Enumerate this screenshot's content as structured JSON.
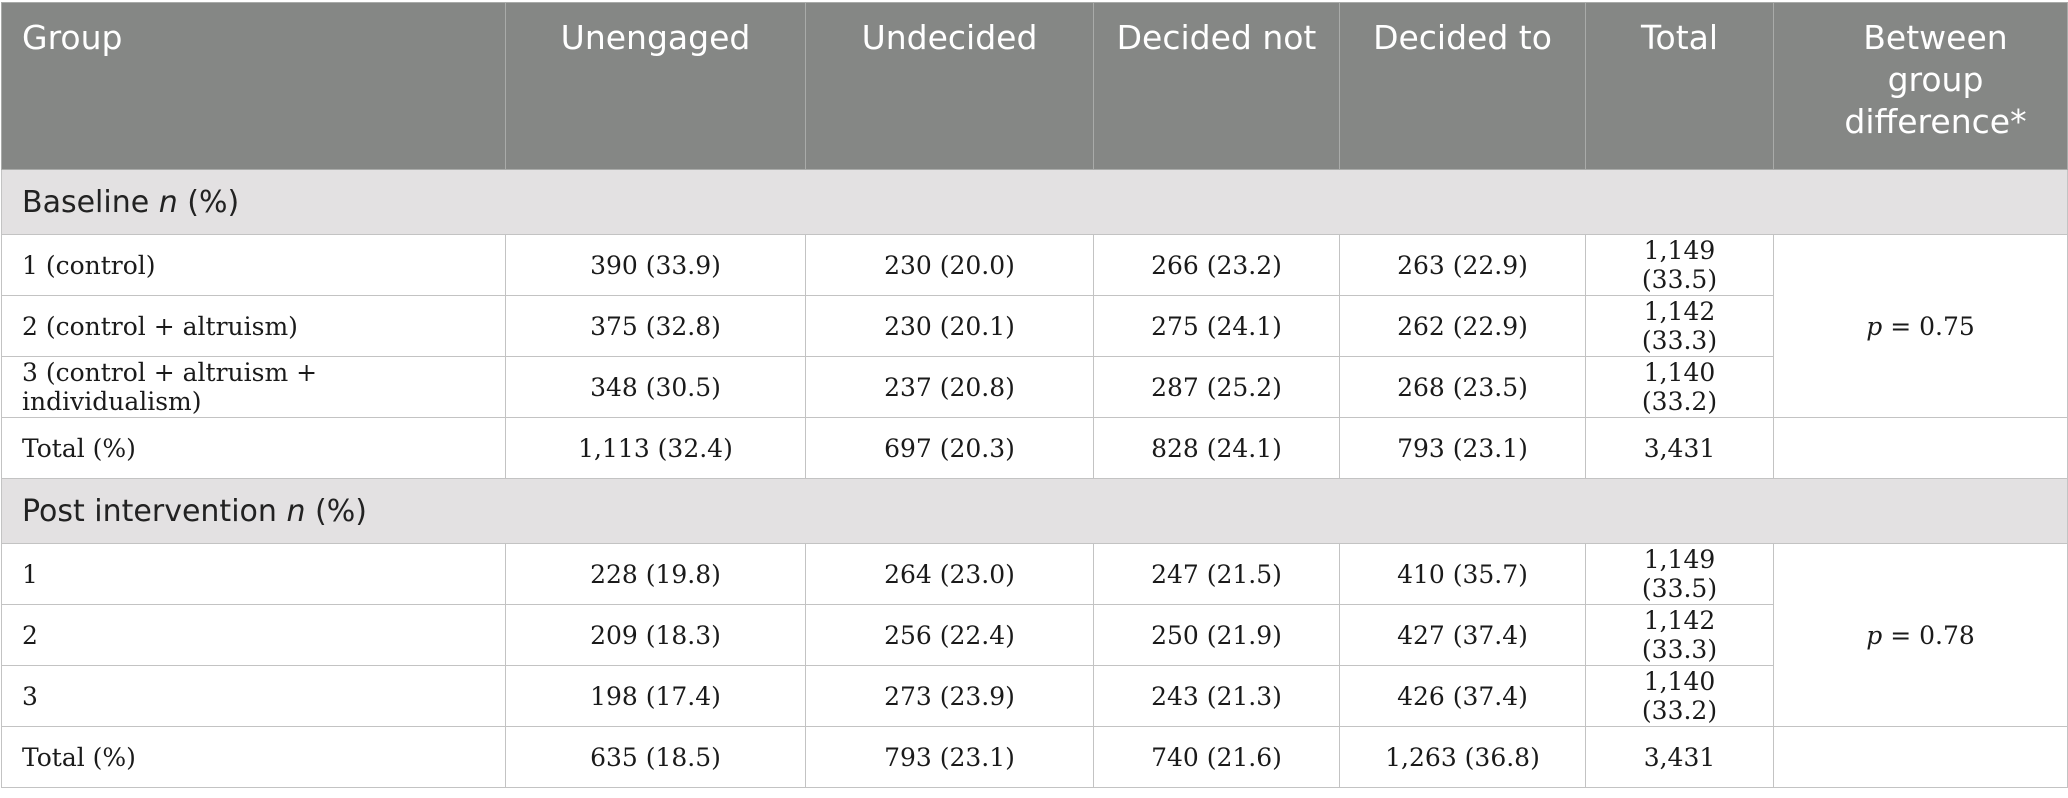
{
  "headers": [
    "Group",
    "Unengaged",
    "Undecided",
    "Decided not",
    "Decided to",
    "Total",
    "Between group difference*"
  ],
  "sections": [
    {
      "title_plain": "Baseline ",
      "title_italic": "n",
      "title_suffix": " (%)",
      "rows": [
        [
          "1 (control)",
          "390 (33.9)",
          "230 (20.0)",
          "266 (23.2)",
          "263 (22.9)",
          "1,149 (33.5)"
        ],
        [
          "2 (control + altruism)",
          "375 (32.8)",
          "230 (20.1)",
          "275 (24.1)",
          "262 (22.9)",
          "1,142 (33.3)"
        ],
        [
          "3 (control + altruism + individualism)",
          "348 (30.5)",
          "237 (20.8)",
          "287 (25.2)",
          "268 (23.5)",
          "1,140 (33.2)"
        ]
      ],
      "p_label": "p",
      "p_value": " = 0.75",
      "total_row": [
        "Total (%)",
        "1,113 (32.4)",
        "697 (20.3)",
        "828 (24.1)",
        "793 (23.1)",
        "3,431"
      ]
    },
    {
      "title_plain": "Post intervention ",
      "title_italic": "n",
      "title_suffix": " (%)",
      "rows": [
        [
          "1",
          "228 (19.8)",
          "264 (23.0)",
          "247 (21.5)",
          "410 (35.7)",
          "1,149 (33.5)"
        ],
        [
          "2",
          "209 (18.3)",
          "256 (22.4)",
          "250 (21.9)",
          "427 (37.4)",
          "1,142 (33.3)"
        ],
        [
          "3",
          "198 (17.4)",
          "273 (23.9)",
          "243 (21.3)",
          "426 (37.4)",
          "1,140 (33.2)"
        ]
      ],
      "p_label": "p",
      "p_value": " = 0.78",
      "total_row": [
        "Total (%)",
        "635 (18.5)",
        "793 (23.1)",
        "740 (21.6)",
        "1,263 (36.8)",
        "3,431"
      ]
    }
  ]
}
